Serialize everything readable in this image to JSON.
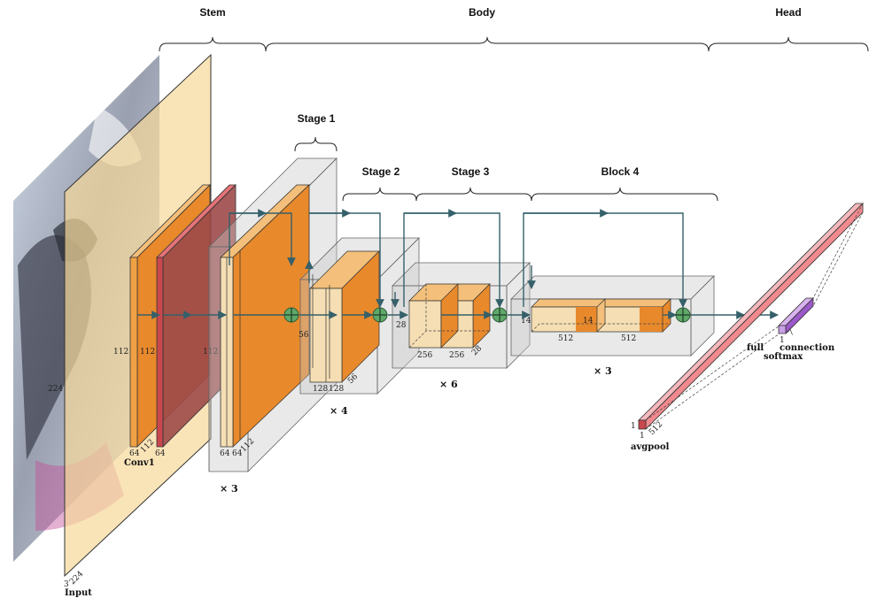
{
  "sections": {
    "stem": "Stem",
    "body": "Body",
    "head": "Head",
    "stage1": "Stage 1",
    "stage2": "Stage 2",
    "stage3": "Stage 3",
    "block4": "Block 4"
  },
  "input": {
    "label": "Input",
    "dim_h": "224",
    "dim_w": "224",
    "dim_c": "3"
  },
  "conv1": {
    "label": "Conv1",
    "dim_a": "112",
    "dim_b": "112",
    "dim_c": "64",
    "dim_d": "112",
    "dim_e": "64"
  },
  "pool1": {
    "dim": "112"
  },
  "stage1": {
    "dim_a": "64",
    "dim_b": "64",
    "dim_c": "112",
    "repeat": "× 3"
  },
  "stage2": {
    "dim_a": "56",
    "dim_b": "128",
    "dim_c": "128",
    "dim_d": "56",
    "repeat": "× 4"
  },
  "stage3": {
    "dim_a": "28",
    "dim_b": "256",
    "dim_c": "256",
    "dim_d": "28",
    "repeat": "× 6"
  },
  "block4": {
    "dim_a": "14",
    "dim_b": "512",
    "dim_c": "14",
    "dim_d": "512",
    "repeat": "× 3"
  },
  "avgpool": {
    "label": "avgpool",
    "dim_a": "1",
    "dim_b": "1",
    "dim_c": "512"
  },
  "fc": {
    "label_a": "full",
    "label_b": "connection",
    "label_c": "softmax",
    "dim_a": "1",
    "dim_b": "7"
  },
  "colors": {
    "orange": "#e8892b",
    "orange_light": "#f3bf7a",
    "pale": "#f5deb3",
    "red": "#c8474e",
    "pink": "#f08a8f",
    "purple": "#9b59c9",
    "green": "#5fa86a",
    "arrow": "#35606a"
  },
  "icons": {
    "add": "plus-circle-icon"
  }
}
